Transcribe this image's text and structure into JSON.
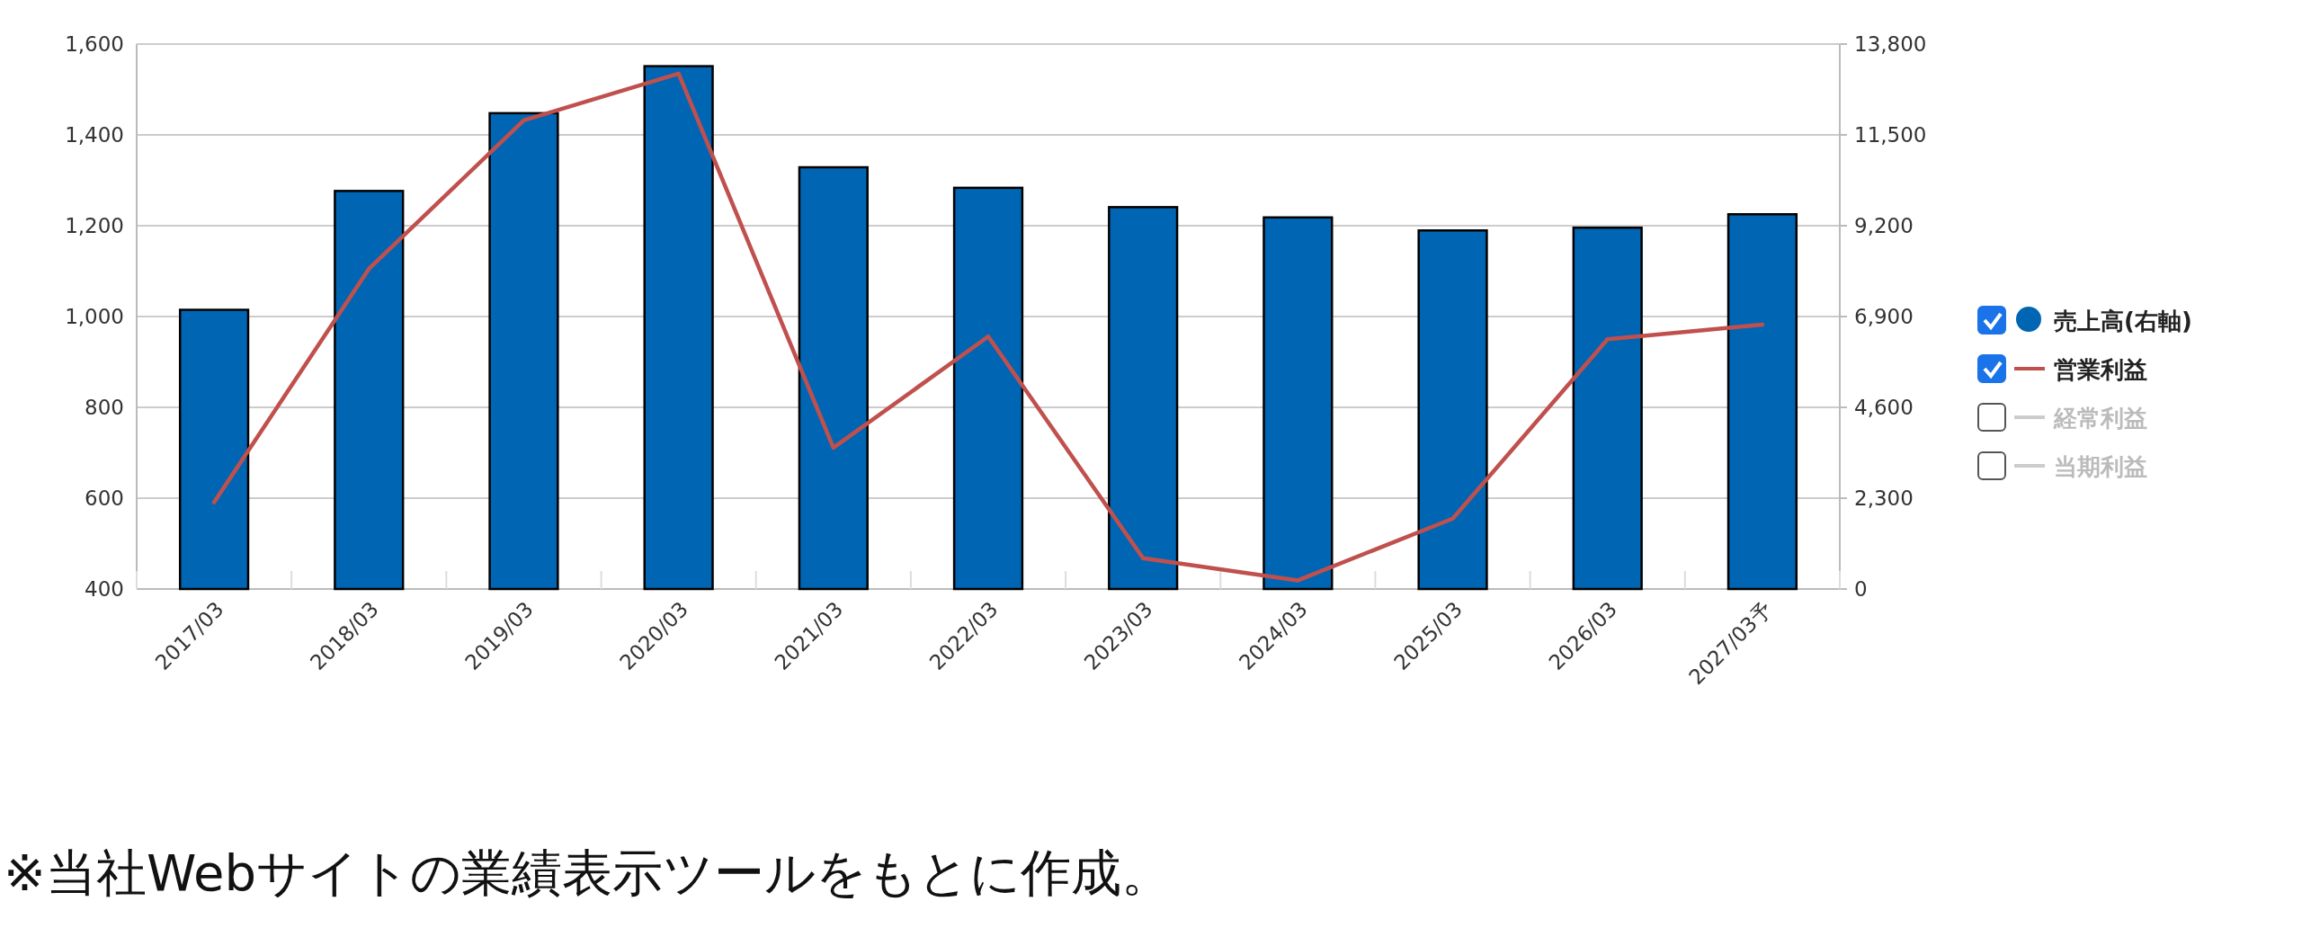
{
  "chart_data": {
    "type": "bar",
    "categories": [
      "2017/03",
      "2018/03",
      "2019/03",
      "2020/03",
      "2021/03",
      "2022/03",
      "2023/03",
      "2024/03",
      "2025/03",
      "2026/03",
      "2027/03予"
    ],
    "series": [
      {
        "name": "売上高(右軸)",
        "axis": "y2",
        "color": "#0066b3",
        "values": [
          7070,
          10080,
          12050,
          13240,
          10680,
          10160,
          9670,
          9410,
          9080,
          9150,
          9490
        ]
      },
      {
        "name": "営業利益",
        "type": "line",
        "color": "#c0504d",
        "values": [
          591,
          1105,
          1432,
          1535,
          711,
          956,
          468,
          419,
          555,
          950,
          982
        ]
      },
      {
        "name": "経常利益",
        "type": "line",
        "color": "#cccccc",
        "values": [
          null,
          null,
          null,
          null,
          null,
          null,
          null,
          null,
          null,
          null,
          null
        ]
      },
      {
        "name": "当期利益",
        "type": "line",
        "color": "#cccccc",
        "values": [
          null,
          null,
          null,
          null,
          null,
          null,
          null,
          null,
          null,
          null,
          null
        ]
      }
    ],
    "ylim": [
      400,
      1600
    ],
    "yticks": [
      {
        "value": 400,
        "label": "400"
      },
      {
        "value": 600,
        "label": "600"
      },
      {
        "value": 800,
        "label": "800"
      },
      {
        "value": 1000,
        "label": "1,000"
      },
      {
        "value": 1200,
        "label": "1,200"
      },
      {
        "value": 1400,
        "label": "1,400"
      },
      {
        "value": 1600,
        "label": "1,600"
      }
    ],
    "y2lim": [
      0,
      13800
    ],
    "y2ticks": [
      0,
      {
        "value": 2300,
        "label": "2,300"
      },
      {
        "value": 4600,
        "label": "4,600"
      },
      {
        "value": 6900,
        "label": "6,900"
      },
      {
        "value": 9200,
        "label": "9,200"
      },
      {
        "value": 11500,
        "label": "11,500"
      },
      {
        "value": 13800,
        "label": "13,800"
      }
    ],
    "grid": "y",
    "legend": "right",
    "line_style": "solid",
    "marker": "none",
    "annotations": [
      "※当社Webサイトの業績表示ツールをもとに作成。"
    ]
  }
}
